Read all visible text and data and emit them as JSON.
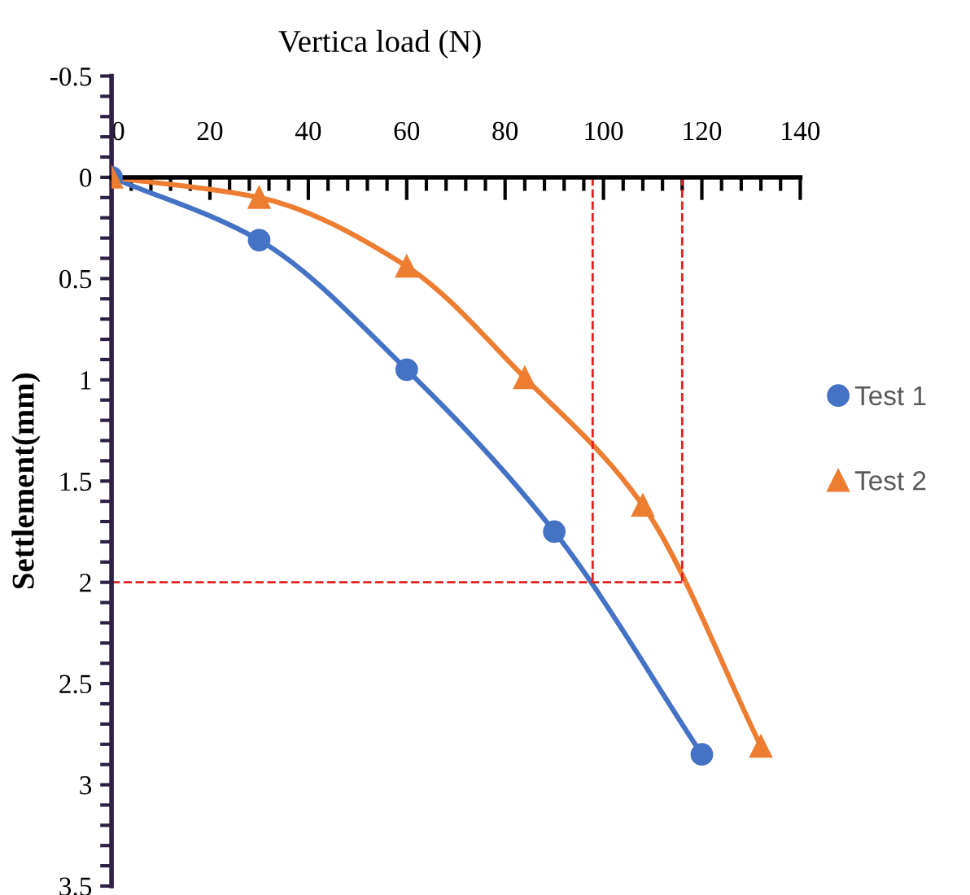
{
  "chart_data": {
    "type": "line",
    "xlabel": "Vertica load (N)",
    "ylabel": "Settlement(mm)",
    "xlim": [
      0,
      140
    ],
    "xticks": [
      0,
      20,
      40,
      60,
      80,
      100,
      120,
      140
    ],
    "ylim": [
      3.5,
      -0.5
    ],
    "yticks": [
      -0.5,
      0,
      0.5,
      1,
      1.5,
      2,
      2.5,
      3,
      3.5
    ],
    "grid": false,
    "legend": "right",
    "series": [
      {
        "name": "Test 1",
        "color": "#4472c4",
        "marker": "circle",
        "x": [
          0,
          30,
          60,
          90,
          120
        ],
        "values": [
          0,
          0.31,
          0.95,
          1.75,
          2.85
        ]
      },
      {
        "name": "Test 2",
        "color": "#ed7d31",
        "marker": "triangle",
        "x": [
          0,
          30,
          60,
          84,
          108,
          132
        ],
        "values": [
          0,
          0.1,
          0.44,
          0.99,
          1.62,
          2.81
        ]
      },
      {
        "type": "line",
        "color": "#e02020",
        "line_style": "dashed",
        "marker": "none",
        "x": [
          97.8,
          97.8
        ],
        "values": [
          0,
          2
        ]
      },
      {
        "type": "line",
        "color": "#e02020",
        "line_style": "dashed",
        "marker": "none",
        "x": [
          116,
          116
        ],
        "values": [
          0,
          2
        ]
      },
      {
        "type": "line",
        "color": "#e02020",
        "line_style": "dashed",
        "marker": "none",
        "x": [
          0,
          116
        ],
        "values": [
          2,
          2
        ]
      }
    ]
  }
}
